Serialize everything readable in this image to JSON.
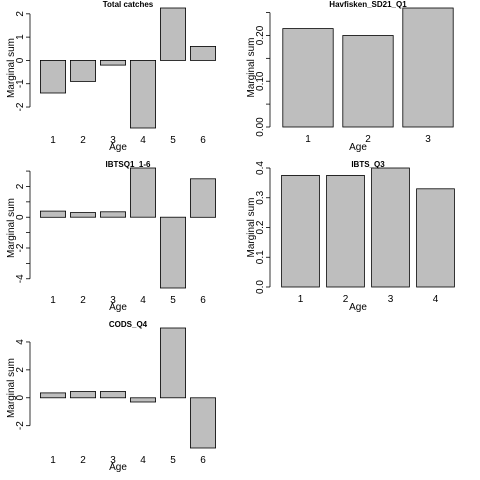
{
  "chart_data": [
    {
      "type": "bar",
      "title": "Total catches",
      "xlabel": "Age",
      "ylabel": "Marginal sum",
      "categories": [
        "1",
        "2",
        "3",
        "4",
        "5",
        "6"
      ],
      "values": [
        -1.4,
        -0.9,
        -0.2,
        -2.9,
        2.25,
        0.6
      ],
      "ylim": [
        -2.9,
        2.25
      ],
      "yticks": [
        "-2",
        "-1",
        "0",
        "1",
        "2"
      ],
      "ytick_values": [
        -2,
        -1,
        0,
        1,
        2
      ],
      "grid": false,
      "bar_color": "#bebebe"
    },
    {
      "type": "bar",
      "title": "Havfisken_SD21_Q1",
      "xlabel": "Age",
      "ylabel": "Marginal sum",
      "categories": [
        "1",
        "2",
        "3"
      ],
      "values": [
        0.215,
        0.2,
        0.26
      ],
      "ylim": [
        0,
        0.26
      ],
      "yticks": [
        "0.00",
        "",
        "0.10",
        "",
        "0.20",
        ""
      ],
      "ytick_values": [
        0,
        0.05,
        0.1,
        0.15,
        0.2,
        0.25
      ],
      "grid": false,
      "bar_color": "#bebebe"
    },
    {
      "type": "bar",
      "title": "IBTSQ1_1-6",
      "xlabel": "Age",
      "ylabel": "Marginal sum",
      "categories": [
        "1",
        "2",
        "3",
        "4",
        "5",
        "6"
      ],
      "values": [
        0.4,
        0.3,
        0.35,
        3.2,
        -4.6,
        2.5
      ],
      "ylim": [
        -4.6,
        3.2
      ],
      "yticks": [
        "-4",
        "",
        "-2",
        "",
        "0",
        "",
        "2",
        ""
      ],
      "ytick_values": [
        -4,
        -3,
        -2,
        -1,
        0,
        1,
        2,
        3
      ],
      "grid": false,
      "bar_color": "#bebebe"
    },
    {
      "type": "bar",
      "title": "IBTS_Q3",
      "xlabel": "Age",
      "ylabel": "Marginal sum",
      "categories": [
        "1",
        "2",
        "3",
        "4"
      ],
      "values": [
        0.375,
        0.375,
        0.4,
        0.33
      ],
      "ylim": [
        0,
        0.4
      ],
      "yticks": [
        "0.0",
        "0.1",
        "0.2",
        "0.3",
        "0.4"
      ],
      "ytick_values": [
        0,
        0.1,
        0.2,
        0.3,
        0.4
      ],
      "grid": false,
      "bar_color": "#bebebe"
    },
    {
      "type": "bar",
      "title": "CODS_Q4",
      "xlabel": "Age",
      "ylabel": "Marginal sum",
      "categories": [
        "1",
        "2",
        "3",
        "4",
        "5",
        "6"
      ],
      "values": [
        0.35,
        0.45,
        0.45,
        -0.3,
        5.0,
        -3.6
      ],
      "ylim": [
        -3.6,
        5.0
      ],
      "yticks": [
        "-2",
        "0",
        "2",
        "4"
      ],
      "ytick_values": [
        -2,
        0,
        2,
        4
      ],
      "grid": false,
      "bar_color": "#bebebe"
    }
  ]
}
